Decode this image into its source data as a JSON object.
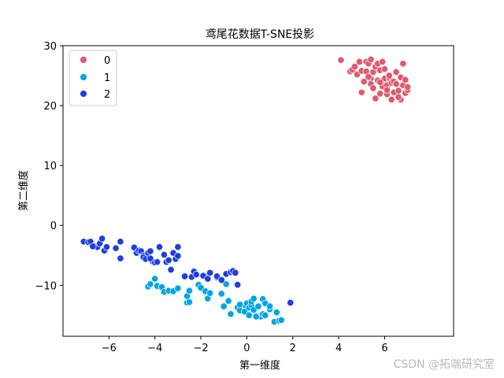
{
  "chart_data": {
    "type": "scatter",
    "title": "鸢尾花数据T-SNE投影",
    "xlabel": "第一维度",
    "ylabel": "第二维度",
    "xlim": [
      -8,
      9
    ],
    "ylim": [
      -18.5,
      30
    ],
    "xticks": [
      -6,
      -4,
      -2,
      0,
      2,
      4,
      6
    ],
    "yticks": [
      -10,
      0,
      10,
      20,
      30
    ],
    "grid": false,
    "legend_position": "top-left",
    "series": [
      {
        "name": "0",
        "color": "#e05a6e",
        "points": [
          [
            4.1,
            27.6
          ],
          [
            4.5,
            25.7
          ],
          [
            4.6,
            26.0
          ],
          [
            4.7,
            26.5
          ],
          [
            4.8,
            25.2
          ],
          [
            4.9,
            27.3
          ],
          [
            5.0,
            25.8
          ],
          [
            5.0,
            22.2
          ],
          [
            5.1,
            24.0
          ],
          [
            5.2,
            25.7
          ],
          [
            5.2,
            27.3
          ],
          [
            5.3,
            27.0
          ],
          [
            5.4,
            27.7
          ],
          [
            5.4,
            24.5
          ],
          [
            5.4,
            23.6
          ],
          [
            5.5,
            25.6
          ],
          [
            5.5,
            22.9
          ],
          [
            5.6,
            26.5
          ],
          [
            5.6,
            21.2
          ],
          [
            5.7,
            24.2
          ],
          [
            5.7,
            27.0
          ],
          [
            5.8,
            25.9
          ],
          [
            5.8,
            22.0
          ],
          [
            5.9,
            27.3
          ],
          [
            5.9,
            23.2
          ],
          [
            6.0,
            24.5
          ],
          [
            6.0,
            26.1
          ],
          [
            6.1,
            23.4
          ],
          [
            6.1,
            21.9
          ],
          [
            6.2,
            24.6
          ],
          [
            6.2,
            25.0
          ],
          [
            6.3,
            23.8
          ],
          [
            6.3,
            21.0
          ],
          [
            6.4,
            24.0
          ],
          [
            6.4,
            22.2
          ],
          [
            6.5,
            23.6
          ],
          [
            6.5,
            25.6
          ],
          [
            6.6,
            22.5
          ],
          [
            6.7,
            24.7
          ],
          [
            6.7,
            21.0
          ],
          [
            6.8,
            23.4
          ],
          [
            6.8,
            27.0
          ],
          [
            6.9,
            22.1
          ],
          [
            6.9,
            24.3
          ],
          [
            7.0,
            22.6
          ],
          [
            7.0,
            23.1
          ],
          [
            6.6,
            21.4
          ],
          [
            5.3,
            24.8
          ],
          [
            6.1,
            22.6
          ],
          [
            5.8,
            23.9
          ]
        ]
      },
      {
        "name": "1",
        "color": "#00a6e2",
        "points": [
          [
            -4.3,
            -10.2
          ],
          [
            -4.2,
            -9.8
          ],
          [
            -4.0,
            -8.9
          ],
          [
            -3.9,
            -10.1
          ],
          [
            -3.7,
            -10.3
          ],
          [
            -3.6,
            -11.1
          ],
          [
            -3.4,
            -10.9
          ],
          [
            -3.2,
            -11.0
          ],
          [
            -3.0,
            -10.5
          ],
          [
            -2.6,
            -11.8
          ],
          [
            -2.6,
            -12.9
          ],
          [
            -2.5,
            -12.8
          ],
          [
            -2.5,
            -10.9
          ],
          [
            -2.1,
            -9.9
          ],
          [
            -2.0,
            -10.4
          ],
          [
            -1.8,
            -11.0
          ],
          [
            -1.7,
            -12.2
          ],
          [
            -1.7,
            -8.4
          ],
          [
            -1.6,
            -11.3
          ],
          [
            -1.3,
            -8.7
          ],
          [
            -1.1,
            -11.4
          ],
          [
            -1.0,
            -13.5
          ],
          [
            -0.9,
            -9.8
          ],
          [
            -0.8,
            -12.6
          ],
          [
            -0.7,
            -14.8
          ],
          [
            -0.4,
            -13.7
          ],
          [
            -0.3,
            -14.2
          ],
          [
            -0.1,
            -13.3
          ],
          [
            -0.1,
            -14.4
          ],
          [
            0.0,
            -13.0
          ],
          [
            0.1,
            -13.7
          ],
          [
            0.1,
            -15.0
          ],
          [
            0.2,
            -13.3
          ],
          [
            0.2,
            -12.7
          ],
          [
            0.3,
            -14.1
          ],
          [
            0.3,
            -12.2
          ],
          [
            0.5,
            -13.5
          ],
          [
            0.6,
            -15.2
          ],
          [
            0.7,
            -12.3
          ],
          [
            0.7,
            -14.8
          ],
          [
            0.8,
            -13.0
          ],
          [
            0.8,
            -15.0
          ],
          [
            1.0,
            -14.0
          ],
          [
            1.0,
            -13.5
          ],
          [
            1.2,
            -16.1
          ],
          [
            1.3,
            -14.5
          ],
          [
            1.4,
            -15.9
          ],
          [
            1.5,
            -15.8
          ],
          [
            -0.3,
            -13.2
          ],
          [
            0.4,
            -15.2
          ]
        ]
      },
      {
        "name": "2",
        "color": "#1f3ee0",
        "points": [
          [
            -7.1,
            -2.7
          ],
          [
            -6.9,
            -2.8
          ],
          [
            -6.8,
            -2.7
          ],
          [
            -6.6,
            -3.5
          ],
          [
            -6.5,
            -3.6
          ],
          [
            -6.4,
            -3.0
          ],
          [
            -6.3,
            -2.2
          ],
          [
            -6.2,
            -4.2
          ],
          [
            -6.1,
            -3.6
          ],
          [
            -5.7,
            -3.8
          ],
          [
            -5.5,
            -2.7
          ],
          [
            -5.5,
            -5.5
          ],
          [
            -4.9,
            -3.7
          ],
          [
            -4.8,
            -4.6
          ],
          [
            -4.7,
            -4.2
          ],
          [
            -4.6,
            -4.3
          ],
          [
            -4.5,
            -5.0
          ],
          [
            -4.5,
            -5.3
          ],
          [
            -4.4,
            -5.6
          ],
          [
            -4.3,
            -4.6
          ],
          [
            -4.2,
            -4.3
          ],
          [
            -4.1,
            -6.0
          ],
          [
            -4.0,
            -6.2
          ],
          [
            -3.8,
            -3.6
          ],
          [
            -3.6,
            -4.9
          ],
          [
            -3.5,
            -6.1
          ],
          [
            -3.4,
            -5.8
          ],
          [
            -3.3,
            -7.4
          ],
          [
            -3.2,
            -4.6
          ],
          [
            -3.1,
            -5.6
          ],
          [
            -3.0,
            -3.6
          ],
          [
            -3.0,
            -5.1
          ],
          [
            -2.7,
            -8.5
          ],
          [
            -2.4,
            -8.6
          ],
          [
            -2.3,
            -7.7
          ],
          [
            -2.2,
            -8.2
          ],
          [
            -1.9,
            -8.4
          ],
          [
            -1.7,
            -8.9
          ],
          [
            -1.6,
            -7.9
          ],
          [
            -1.3,
            -8.5
          ],
          [
            -1.1,
            -9.1
          ],
          [
            -0.9,
            -8.1
          ],
          [
            -0.7,
            -7.8
          ],
          [
            -0.6,
            -7.6
          ],
          [
            -0.5,
            -7.9
          ],
          [
            -0.4,
            -9.9
          ],
          [
            1.9,
            -12.9
          ],
          [
            -3.9,
            -6.1
          ],
          [
            -6.7,
            -3.5
          ],
          [
            -4.2,
            -5.5
          ]
        ]
      }
    ]
  }
}
